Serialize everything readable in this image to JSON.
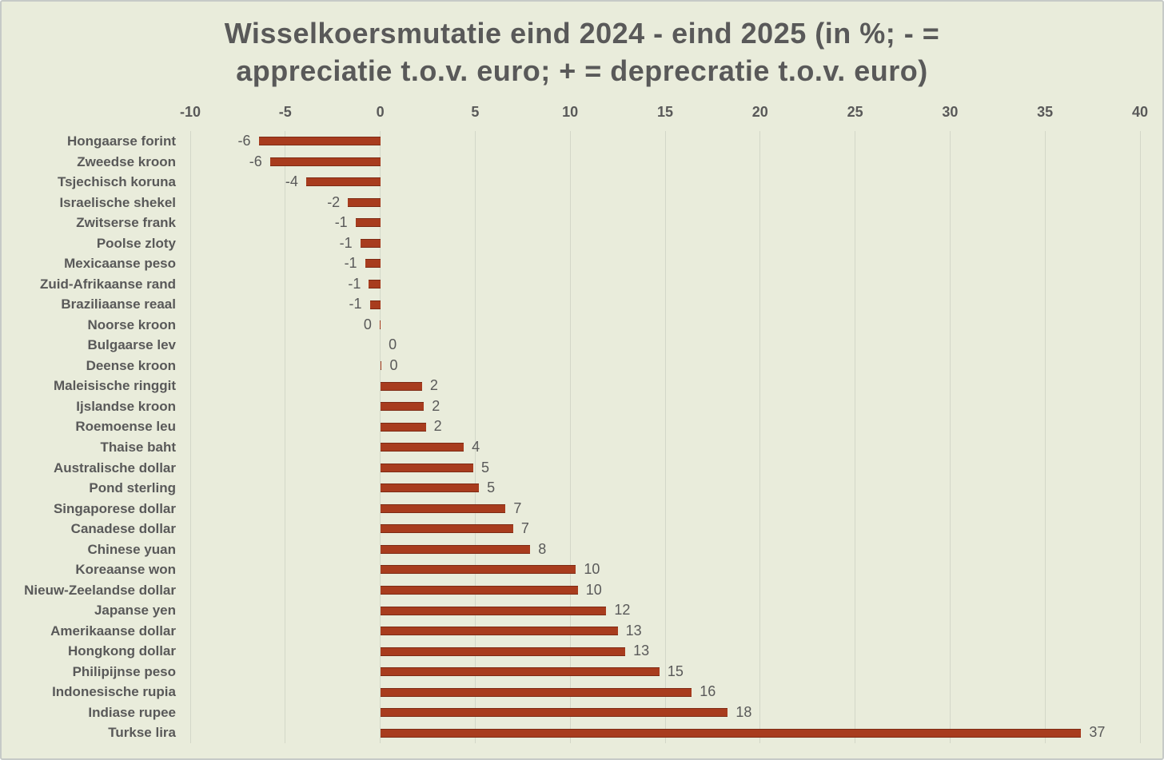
{
  "chart_data": {
    "type": "bar",
    "orientation": "horizontal",
    "title": "Wisselkoersmutatie eind 2024 - eind 2025 (in %; - = appreciatie t.o.v. euro; + = deprecratie t.o.v. euro)",
    "title_lines": [
      "Wisselkoersmutatie eind 2024 - eind 2025 (in %; - =",
      "appreciatie t.o.v. euro; + = deprecratie t.o.v. euro)"
    ],
    "categories": [
      "Hongaarse forint",
      "Zweedse kroon",
      "Tsjechisch koruna",
      "Israelische shekel",
      "Zwitserse frank",
      "Poolse zloty",
      "Mexicaanse peso",
      "Zuid-Afrikaanse rand",
      "Braziliaanse reaal",
      "Noorse kroon",
      "Bulgaarse lev",
      "Deense kroon",
      "Maleisische ringgit",
      "Ijslandse kroon",
      "Roemoense leu",
      "Thaise baht",
      "Australische dollar",
      "Pond sterling",
      "Singaporese dollar",
      "Canadese dollar",
      "Chinese yuan",
      "Koreaanse won",
      "Nieuw-Zeelandse dollar",
      "Japanse yen",
      "Amerikaanse dollar",
      "Hongkong dollar",
      "Philipijnse peso",
      "Indonesische rupia",
      "Indiase rupee",
      "Turkse lira"
    ],
    "values": [
      -6,
      -6,
      -4,
      -2,
      -1,
      -1,
      -1,
      -1,
      -1,
      0,
      0,
      0,
      2,
      2,
      2,
      4,
      5,
      5,
      7,
      7,
      8,
      10,
      10,
      12,
      13,
      13,
      15,
      16,
      18,
      37
    ],
    "bar_values": [
      -6.4,
      -5.8,
      -3.9,
      -1.7,
      -1.3,
      -1.05,
      -0.8,
      -0.6,
      -0.55,
      -0.03,
      0.02,
      0.08,
      2.2,
      2.3,
      2.4,
      4.4,
      4.9,
      5.2,
      6.6,
      7.0,
      7.9,
      10.3,
      10.4,
      11.9,
      12.5,
      12.9,
      14.7,
      16.4,
      18.3,
      36.9
    ],
    "xlim": [
      -10,
      40
    ],
    "x_ticks": [
      -10,
      -5,
      0,
      5,
      10,
      15,
      20,
      25,
      30,
      35,
      40
    ],
    "grid": true,
    "legend": false,
    "data_labels": "outside-end",
    "colors": {
      "background": "#e9ecdb",
      "bar_fill": "#a83c1e",
      "bar_edge": "#7d2a14",
      "text": "#595959",
      "gridline": "#d3d7c8",
      "frame_border": "#c6cac7"
    }
  }
}
